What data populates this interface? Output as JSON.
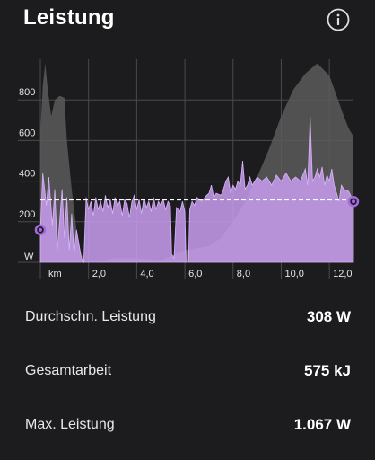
{
  "header": {
    "title": "Leistung",
    "info_icon": "info-circle-icon"
  },
  "chart_data": {
    "type": "area",
    "title": "",
    "y_unit": "W",
    "x_unit": "km",
    "ylim": [
      0,
      1000
    ],
    "xlim": [
      0,
      13.0
    ],
    "y_ticks": [
      200,
      400,
      600,
      800
    ],
    "y_tick_labels": [
      "200",
      "400",
      "600",
      "800"
    ],
    "x_ticks": [
      2.0,
      4.0,
      6.0,
      8.0,
      10.0,
      12.0
    ],
    "x_tick_labels": [
      "2,0",
      "4,0",
      "6,0",
      "8,0",
      "10,0",
      "12,0"
    ],
    "average_line": 308,
    "grid": true,
    "colors": {
      "power": "#c99df0",
      "power_stroke": "#d8b4f8",
      "elevation": "#5a5a5c",
      "grid": "#4a4a4c",
      "average_line": "#ffffff",
      "marker": "#a46be0"
    },
    "series": [
      {
        "values": [
          [
            0,
            160
          ],
          [
            0.1,
            440
          ],
          [
            0.25,
            280
          ],
          [
            0.35,
            420
          ],
          [
            0.5,
            180
          ],
          [
            0.6,
            360
          ],
          [
            0.7,
            60
          ],
          [
            0.8,
            200
          ],
          [
            0.9,
            360
          ],
          [
            1.0,
            120
          ],
          [
            1.1,
            320
          ],
          [
            1.2,
            60
          ],
          [
            1.3,
            240
          ],
          [
            1.4,
            40
          ],
          [
            1.5,
            160
          ],
          [
            1.7,
            20
          ],
          [
            1.8,
            0
          ],
          [
            1.9,
            320
          ],
          [
            2.0,
            260
          ],
          [
            2.1,
            300
          ],
          [
            2.2,
            230
          ],
          [
            2.3,
            320
          ],
          [
            2.4,
            260
          ],
          [
            2.5,
            300
          ],
          [
            2.6,
            250
          ],
          [
            2.7,
            330
          ],
          [
            2.8,
            270
          ],
          [
            2.9,
            310
          ],
          [
            3.0,
            240
          ],
          [
            3.1,
            320
          ],
          [
            3.2,
            280
          ],
          [
            3.3,
            300
          ],
          [
            3.4,
            230
          ],
          [
            3.5,
            310
          ],
          [
            3.6,
            290
          ],
          [
            3.7,
            220
          ],
          [
            3.8,
            300
          ],
          [
            3.9,
            330
          ],
          [
            4.0,
            260
          ],
          [
            4.1,
            310
          ],
          [
            4.2,
            240
          ],
          [
            4.3,
            320
          ],
          [
            4.4,
            270
          ],
          [
            4.5,
            300
          ],
          [
            4.6,
            250
          ],
          [
            4.7,
            320
          ],
          [
            4.8,
            260
          ],
          [
            4.9,
            300
          ],
          [
            5.0,
            280
          ],
          [
            5.1,
            310
          ],
          [
            5.2,
            260
          ],
          [
            5.3,
            300
          ],
          [
            5.4,
            280
          ],
          [
            5.45,
            40
          ],
          [
            5.55,
            20
          ],
          [
            5.65,
            270
          ],
          [
            5.8,
            250
          ],
          [
            5.9,
            300
          ],
          [
            6.0,
            250
          ],
          [
            6.05,
            0
          ],
          [
            6.15,
            0
          ],
          [
            6.2,
            260
          ],
          [
            6.3,
            300
          ],
          [
            6.4,
            280
          ],
          [
            6.5,
            320
          ],
          [
            6.7,
            300
          ],
          [
            6.9,
            330
          ],
          [
            7.0,
            340
          ],
          [
            7.1,
            380
          ],
          [
            7.2,
            320
          ],
          [
            7.3,
            340
          ],
          [
            7.5,
            330
          ],
          [
            7.6,
            360
          ],
          [
            7.7,
            400
          ],
          [
            7.8,
            420
          ],
          [
            7.9,
            340
          ],
          [
            8.0,
            380
          ],
          [
            8.1,
            360
          ],
          [
            8.2,
            400
          ],
          [
            8.3,
            380
          ],
          [
            8.4,
            500
          ],
          [
            8.5,
            360
          ],
          [
            8.6,
            380
          ],
          [
            8.7,
            420
          ],
          [
            8.8,
            380
          ],
          [
            8.9,
            400
          ],
          [
            9.0,
            420
          ],
          [
            9.2,
            400
          ],
          [
            9.4,
            420
          ],
          [
            9.6,
            380
          ],
          [
            9.8,
            430
          ],
          [
            10.0,
            400
          ],
          [
            10.2,
            440
          ],
          [
            10.4,
            400
          ],
          [
            10.6,
            420
          ],
          [
            10.8,
            400
          ],
          [
            11.0,
            460
          ],
          [
            11.1,
            380
          ],
          [
            11.2,
            720
          ],
          [
            11.3,
            400
          ],
          [
            11.4,
            420
          ],
          [
            11.5,
            460
          ],
          [
            11.6,
            420
          ],
          [
            11.7,
            470
          ],
          [
            11.8,
            380
          ],
          [
            11.9,
            430
          ],
          [
            12.0,
            400
          ],
          [
            12.1,
            460
          ],
          [
            12.2,
            380
          ],
          [
            12.3,
            340
          ],
          [
            12.4,
            300
          ],
          [
            12.5,
            380
          ],
          [
            12.6,
            360
          ],
          [
            12.8,
            350
          ],
          [
            13.0,
            300
          ]
        ]
      }
    ],
    "elevation": [
      [
        0,
        640
      ],
      [
        0.1,
        870
      ],
      [
        0.2,
        980
      ],
      [
        0.3,
        860
      ],
      [
        0.45,
        720
      ],
      [
        0.6,
        800
      ],
      [
        0.8,
        820
      ],
      [
        1.0,
        810
      ],
      [
        1.1,
        600
      ],
      [
        1.3,
        360
      ],
      [
        1.5,
        160
      ],
      [
        1.7,
        40
      ],
      [
        1.9,
        0
      ],
      [
        2.5,
        0
      ],
      [
        3.0,
        20
      ],
      [
        4.0,
        20
      ],
      [
        5.0,
        10
      ],
      [
        6.0,
        60
      ],
      [
        7.0,
        80
      ],
      [
        7.5,
        120
      ],
      [
        8.0,
        200
      ],
      [
        8.5,
        300
      ],
      [
        9.0,
        420
      ],
      [
        9.5,
        560
      ],
      [
        10.0,
        720
      ],
      [
        10.5,
        850
      ],
      [
        11.0,
        930
      ],
      [
        11.5,
        980
      ],
      [
        12.0,
        920
      ],
      [
        12.3,
        820
      ],
      [
        12.6,
        720
      ],
      [
        12.8,
        660
      ],
      [
        13.0,
        620
      ]
    ]
  },
  "stats": [
    {
      "label": "Durchschn. Leistung",
      "value": "308 W"
    },
    {
      "label": "Gesamtarbeit",
      "value": "575 kJ"
    },
    {
      "label": "Max. Leistung",
      "value": "1.067 W"
    }
  ]
}
